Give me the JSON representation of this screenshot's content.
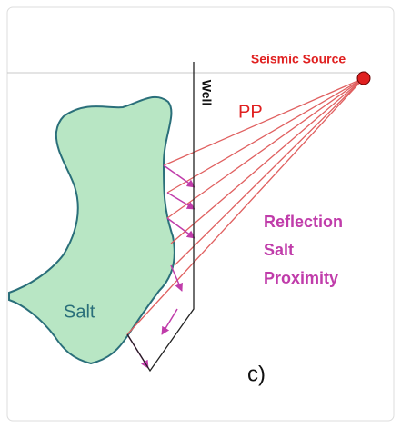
{
  "labels": {
    "source": "Seismic Source",
    "well": "Well",
    "wave": "PP",
    "annotation": [
      "Reflection",
      "Salt",
      "Proximity"
    ],
    "body": "Salt",
    "panel": "c)"
  }
}
